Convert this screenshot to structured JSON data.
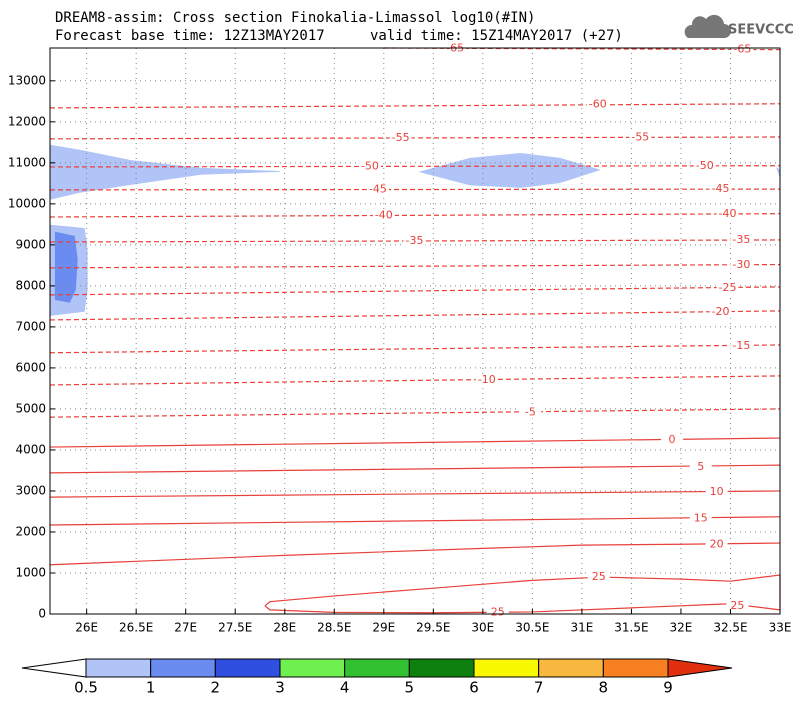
{
  "chart_data": {
    "type": "contour",
    "title": "DREAM8-assim: Cross section Finokalia-Limassol log10(#IN)",
    "subtitle": "Forecast base time: 12Z13MAY2017",
    "valid_time": "valid time: 15Z14MAY2017 (+27)",
    "logo": "SEEVCCC",
    "xlim": [
      25.63,
      33
    ],
    "xticks": [
      {
        "value": 26,
        "label": "26E"
      },
      {
        "value": 26.5,
        "label": "26.5E"
      },
      {
        "value": 27,
        "label": "27E"
      },
      {
        "value": 27.5,
        "label": "27.5E"
      },
      {
        "value": 28,
        "label": "28E"
      },
      {
        "value": 28.5,
        "label": "28.5E"
      },
      {
        "value": 29,
        "label": "29E"
      },
      {
        "value": 29.5,
        "label": "29.5E"
      },
      {
        "value": 30,
        "label": "30E"
      },
      {
        "value": 30.5,
        "label": "30.5E"
      },
      {
        "value": 31,
        "label": "31E"
      },
      {
        "value": 31.5,
        "label": "31.5E"
      },
      {
        "value": 32,
        "label": "32E"
      },
      {
        "value": 32.5,
        "label": "32.5E"
      },
      {
        "value": 33,
        "label": "33E"
      }
    ],
    "ylim": [
      0,
      13800
    ],
    "yticks": [
      0,
      1000,
      2000,
      3000,
      4000,
      5000,
      6000,
      7000,
      8000,
      9000,
      10000,
      11000,
      12000,
      13000
    ],
    "grid": true,
    "contour_color": "#e8403a",
    "contours": [
      {
        "level": -65,
        "x": [
          29.0,
          33
        ],
        "y": [
          13800,
          13760
        ],
        "labels": [
          [
            29.72,
            13790
          ],
          [
            32.62,
            13760
          ]
        ]
      },
      {
        "level": -60,
        "x": [
          25.63,
          33
        ],
        "y": [
          12340,
          12440
        ],
        "labels": [
          [
            31.16,
            12420
          ]
        ]
      },
      {
        "level": -55,
        "x": [
          25.63,
          33
        ],
        "y": [
          11585,
          11630
        ],
        "labels": [
          [
            29.17,
            11610
          ],
          [
            31.59,
            11620
          ]
        ]
      },
      {
        "level": -50,
        "x": [
          25.63,
          33
        ],
        "y": [
          10900,
          10930
        ],
        "labels": [
          [
            28.86,
            10910
          ],
          [
            32.24,
            10925
          ]
        ]
      },
      {
        "level": -45,
        "x": [
          25.63,
          33
        ],
        "y": [
          10340,
          10360
        ],
        "labels": [
          [
            28.94,
            10350
          ],
          [
            32.4,
            10360
          ]
        ]
      },
      {
        "level": -40,
        "x": [
          25.63,
          33
        ],
        "y": [
          9680,
          9760
        ],
        "labels": [
          [
            29.0,
            9720
          ],
          [
            32.47,
            9750
          ]
        ]
      },
      {
        "level": -35,
        "x": [
          25.63,
          33
        ],
        "y": [
          9070,
          9120
        ],
        "labels": [
          [
            29.31,
            9090
          ],
          [
            32.61,
            9115
          ]
        ]
      },
      {
        "level": -30,
        "x": [
          25.63,
          33
        ],
        "y": [
          8440,
          8520
        ],
        "labels": [
          [
            32.61,
            8510
          ]
        ]
      },
      {
        "level": -25,
        "x": [
          25.63,
          33
        ],
        "y": [
          7780,
          7975
        ],
        "labels": [
          [
            32.47,
            7950
          ]
        ]
      },
      {
        "level": -20,
        "x": [
          25.63,
          33
        ],
        "y": [
          7170,
          7390
        ],
        "labels": [
          [
            32.4,
            7360
          ]
        ]
      },
      {
        "level": -15,
        "x": [
          25.63,
          33
        ],
        "y": [
          6370,
          6560
        ],
        "labels": [
          [
            32.61,
            6540
          ]
        ]
      },
      {
        "level": -10,
        "x": [
          25.63,
          33
        ],
        "y": [
          5585,
          5805
        ],
        "labels": [
          [
            30.04,
            5700
          ]
        ]
      },
      {
        "level": -5,
        "x": [
          25.63,
          33
        ],
        "y": [
          4800,
          5000
        ],
        "labels": [
          [
            30.48,
            4910
          ]
        ]
      },
      {
        "level": 0,
        "x": [
          25.63,
          33
        ],
        "y": [
          4070,
          4290
        ],
        "labels": [
          [
            31.91,
            4240
          ]
        ]
      },
      {
        "level": 5,
        "x": [
          25.63,
          33
        ],
        "y": [
          3440,
          3630
        ],
        "labels": [
          [
            32.2,
            3590
          ]
        ]
      },
      {
        "level": 10,
        "x": [
          25.63,
          33
        ],
        "y": [
          2850,
          3000
        ],
        "labels": [
          [
            32.36,
            2970
          ]
        ]
      },
      {
        "level": 15,
        "x": [
          25.63,
          33
        ],
        "y": [
          2170,
          2370
        ],
        "labels": [
          [
            32.2,
            2330
          ]
        ]
      },
      {
        "level": 20,
        "x": [
          25.63,
          28,
          30,
          31,
          32,
          33
        ],
        "y": [
          1200,
          1430,
          1600,
          1680,
          1700,
          1730
        ],
        "labels": [
          [
            32.36,
            1700
          ]
        ]
      },
      {
        "level": 25,
        "x": [
          27.8,
          27.85,
          28.5,
          29.5,
          30.5,
          31.2,
          32,
          32.5,
          33,
          33,
          32.5,
          31.5,
          30.5,
          29.5,
          28.5,
          27.85,
          27.8
        ],
        "y": [
          200,
          300,
          440,
          630,
          820,
          900,
          850,
          800,
          950,
          100,
          250,
          150,
          50,
          30,
          40,
          100,
          200
        ],
        "labels": [
          [
            31.17,
            900
          ],
          [
            32.57,
            200
          ],
          [
            30.15,
            40
          ]
        ]
      }
    ],
    "regions": [
      {
        "level": 0.5,
        "x": [
          25.63,
          25.93,
          26.44,
          27.15,
          27.95,
          27.95,
          27.15,
          26.44,
          25.93,
          25.63
        ],
        "y": [
          11440,
          11320,
          11070,
          10880,
          10800,
          10780,
          10710,
          10460,
          10270,
          10100
        ]
      },
      {
        "level": 0.5,
        "x": [
          29.35,
          29.87,
          30.38,
          30.78,
          31.19,
          30.78,
          30.38,
          29.87
        ],
        "y": [
          10780,
          11120,
          11240,
          11120,
          10830,
          10510,
          10390,
          10450
        ]
      },
      {
        "level": 0.5,
        "x": [
          32.96,
          33,
          33
        ],
        "y": [
          10900,
          10830,
          10630
        ]
      },
      {
        "level": 0.5,
        "x": [
          25.63,
          25.98,
          26.01,
          26.01,
          25.98,
          25.63
        ],
        "y": [
          9490,
          9410,
          8880,
          7900,
          7370,
          7270
        ]
      },
      {
        "level": 1,
        "x": [
          25.68,
          25.88,
          25.91,
          25.89,
          25.83,
          25.68
        ],
        "y": [
          9320,
          9220,
          8630,
          7900,
          7590,
          7660
        ]
      }
    ],
    "colorbar": {
      "levels": [
        0.5,
        1,
        2,
        3,
        4,
        5,
        6,
        7,
        8,
        9
      ],
      "colors": [
        "#ffffff",
        "#b0c4f8",
        "#6a8cf0",
        "#2f4fe0",
        "#70f050",
        "#30c030",
        "#0e800e",
        "#f8f800",
        "#f8b840",
        "#f88020",
        "#e03010"
      ]
    }
  }
}
